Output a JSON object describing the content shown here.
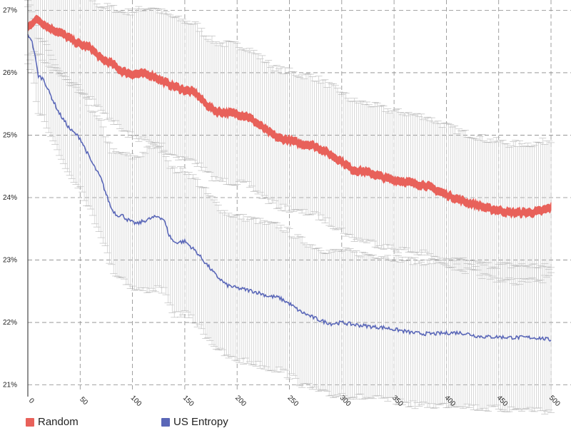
{
  "chart_data": {
    "type": "line",
    "xlim": [
      0,
      500
    ],
    "ylim": [
      20.95,
      27.05
    ],
    "y_ticks": [
      {
        "value": 21,
        "label": "21%"
      },
      {
        "value": 22,
        "label": "22%"
      },
      {
        "value": 23,
        "label": "23%"
      },
      {
        "value": 24,
        "label": "24%"
      },
      {
        "value": 25,
        "label": "25%"
      },
      {
        "value": 26,
        "label": "26%"
      },
      {
        "value": 27,
        "label": "27%"
      }
    ],
    "x_ticks": [
      {
        "value": 0,
        "label": "0"
      },
      {
        "value": 50,
        "label": "50"
      },
      {
        "value": 100,
        "label": "100"
      },
      {
        "value": 150,
        "label": "150"
      },
      {
        "value": 200,
        "label": "200"
      },
      {
        "value": 250,
        "label": "250"
      },
      {
        "value": 300,
        "label": "300"
      },
      {
        "value": 350,
        "label": "350"
      },
      {
        "value": 400,
        "label": "400"
      },
      {
        "value": 450,
        "label": "450"
      },
      {
        "value": 500,
        "label": "500"
      }
    ],
    "grid": true,
    "legend_position": "bottom-left",
    "series": [
      {
        "name": "Random",
        "color": "#e8615a",
        "band_width": 0.12,
        "error_spread": 1.1,
        "x": [
          0,
          5,
          10,
          20,
          30,
          40,
          50,
          60,
          70,
          80,
          90,
          100,
          110,
          120,
          130,
          140,
          150,
          160,
          170,
          180,
          190,
          200,
          210,
          220,
          230,
          240,
          250,
          260,
          270,
          280,
          290,
          300,
          310,
          320,
          330,
          340,
          350,
          360,
          370,
          380,
          390,
          400,
          410,
          420,
          430,
          440,
          450,
          460,
          470,
          480,
          490,
          500
        ],
        "y": [
          26.72,
          26.82,
          26.85,
          26.72,
          26.65,
          26.55,
          26.45,
          26.4,
          26.22,
          26.15,
          26.02,
          25.98,
          25.98,
          25.95,
          25.85,
          25.78,
          25.72,
          25.68,
          25.5,
          25.38,
          25.36,
          25.34,
          25.3,
          25.18,
          25.05,
          24.95,
          24.92,
          24.86,
          24.85,
          24.78,
          24.68,
          24.58,
          24.45,
          24.42,
          24.38,
          24.32,
          24.28,
          24.26,
          24.22,
          24.2,
          24.12,
          24.05,
          23.98,
          23.92,
          23.88,
          23.82,
          23.8,
          23.76,
          23.76,
          23.76,
          23.78,
          23.84
        ]
      },
      {
        "name": "US Entropy",
        "color": "#5a67b8",
        "band_width": 0,
        "error_spread": 1.15,
        "x": [
          0,
          3,
          6,
          10,
          15,
          20,
          30,
          40,
          50,
          60,
          65,
          70,
          75,
          80,
          85,
          90,
          95,
          100,
          105,
          110,
          115,
          120,
          125,
          130,
          135,
          140,
          150,
          160,
          170,
          180,
          190,
          200,
          210,
          220,
          230,
          240,
          250,
          260,
          270,
          280,
          290,
          300,
          310,
          320,
          330,
          340,
          350,
          360,
          370,
          380,
          390,
          400,
          410,
          420,
          430,
          440,
          450,
          460,
          470,
          480,
          490,
          500
        ],
        "y": [
          26.6,
          26.55,
          26.35,
          25.95,
          25.9,
          25.7,
          25.35,
          25.1,
          24.95,
          24.6,
          24.45,
          24.3,
          24.05,
          23.82,
          23.72,
          23.72,
          23.65,
          23.6,
          23.58,
          23.62,
          23.65,
          23.68,
          23.7,
          23.65,
          23.4,
          23.28,
          23.3,
          23.15,
          22.95,
          22.75,
          22.6,
          22.55,
          22.52,
          22.48,
          22.42,
          22.4,
          22.3,
          22.18,
          22.1,
          22.03,
          21.98,
          22.0,
          21.97,
          21.95,
          21.93,
          21.92,
          21.89,
          21.86,
          21.83,
          21.82,
          21.82,
          21.83,
          21.84,
          21.82,
          21.78,
          21.77,
          21.77,
          21.76,
          21.76,
          21.76,
          21.75,
          21.72
        ]
      }
    ]
  }
}
